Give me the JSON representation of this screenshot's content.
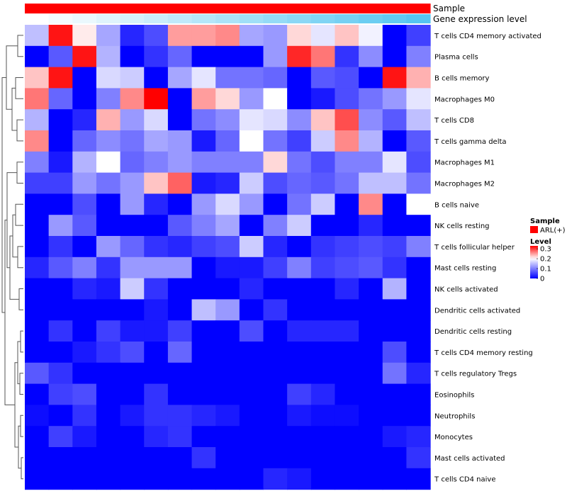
{
  "chart_data": {
    "type": "heatmap",
    "title": "",
    "xlabel": "",
    "ylabel": "",
    "annotation_tracks": [
      {
        "label": "Sample"
      },
      {
        "label": "Gene expression level"
      }
    ],
    "rows": [
      "T cells CD4 memory activated",
      "Plasma cells",
      "B cells memory",
      "Macrophages M0",
      "T cells CD8",
      "T cells gamma delta",
      "Macrophages M1",
      "Macrophages M2",
      "B cells naive",
      "NK cells resting",
      "T cells follicular helper",
      "Mast cells resting",
      "NK cells activated",
      "Dendritic cells activated",
      "Dendritic cells resting",
      "T cells CD4 memory resting",
      "T cells regulatory  Tregs",
      "Eosinophils",
      "Neutrophils",
      "Monocytes",
      "Mast cells activated",
      "T cells CD4 naive"
    ],
    "values": [
      [
        0.15,
        0.32,
        0.21,
        0.13,
        0.03,
        0.06,
        0.25,
        0.25,
        0.26,
        0.13,
        0.12,
        0.22,
        0.18,
        0.23,
        0.19,
        0.0,
        0.05
      ],
      [
        0.0,
        0.07,
        0.32,
        0.14,
        0.0,
        0.04,
        0.08,
        0.0,
        0.0,
        0.0,
        0.12,
        0.31,
        0.27,
        0.04,
        0.11,
        0.0,
        0.1
      ],
      [
        0.23,
        0.32,
        0.0,
        0.17,
        0.16,
        0.0,
        0.13,
        0.18,
        0.09,
        0.09,
        0.08,
        0.0,
        0.07,
        0.06,
        0.0,
        0.32,
        0.24
      ],
      [
        0.27,
        0.08,
        0.0,
        0.1,
        0.26,
        0.33,
        0.0,
        0.25,
        0.22,
        0.12,
        0.2,
        0.0,
        0.02,
        0.06,
        0.09,
        0.12,
        0.18
      ],
      [
        0.14,
        0.0,
        0.03,
        0.24,
        0.12,
        0.17,
        0.0,
        0.09,
        0.11,
        0.18,
        0.17,
        0.11,
        0.23,
        0.29,
        0.11,
        0.07,
        0.15
      ],
      [
        0.26,
        0.0,
        0.08,
        0.11,
        0.09,
        0.13,
        0.12,
        0.02,
        0.08,
        0.2,
        0.09,
        0.05,
        0.16,
        0.26,
        0.14,
        0.0,
        0.07
      ],
      [
        0.1,
        0.02,
        0.14,
        0.2,
        0.08,
        0.1,
        0.12,
        0.1,
        0.1,
        0.1,
        0.22,
        0.09,
        0.06,
        0.1,
        0.1,
        0.18,
        0.06
      ],
      [
        0.05,
        0.05,
        0.12,
        0.09,
        0.12,
        0.23,
        0.28,
        0.02,
        0.03,
        0.16,
        0.06,
        0.08,
        0.07,
        0.09,
        0.15,
        0.15,
        0.09
      ],
      [
        0.0,
        0.0,
        0.06,
        0.0,
        0.12,
        0.03,
        0.0,
        0.12,
        0.17,
        0.12,
        0.0,
        0.09,
        0.16,
        0.0,
        0.26,
        0.0,
        0.2
      ],
      [
        0.0,
        0.12,
        0.07,
        0.0,
        0.0,
        0.0,
        0.07,
        0.1,
        0.13,
        0.0,
        0.1,
        0.16,
        0.0,
        0.0,
        0.03,
        0.0,
        0.0
      ],
      [
        0.0,
        0.04,
        0.0,
        0.12,
        0.08,
        0.04,
        0.03,
        0.05,
        0.06,
        0.16,
        0.03,
        0.0,
        0.04,
        0.05,
        0.06,
        0.05,
        0.1
      ],
      [
        0.03,
        0.07,
        0.1,
        0.04,
        0.12,
        0.12,
        0.12,
        0.0,
        0.02,
        0.02,
        0.05,
        0.1,
        0.05,
        0.06,
        0.07,
        0.04,
        0.0
      ],
      [
        0.0,
        0.0,
        0.03,
        0.02,
        0.16,
        0.04,
        0.0,
        0.0,
        0.0,
        0.03,
        0.0,
        0.0,
        0.0,
        0.03,
        0.0,
        0.14,
        0.0
      ],
      [
        0.0,
        0.0,
        0.0,
        0.0,
        0.0,
        0.02,
        0.0,
        0.15,
        0.12,
        0.0,
        0.04,
        0.0,
        0.0,
        0.0,
        0.0,
        0.0,
        0.0
      ],
      [
        0.0,
        0.04,
        0.0,
        0.05,
        0.02,
        0.02,
        0.05,
        0.0,
        0.0,
        0.06,
        0.0,
        0.03,
        0.03,
        0.03,
        0.0,
        0.0,
        0.0
      ],
      [
        0.0,
        0.0,
        0.02,
        0.04,
        0.06,
        0.0,
        0.08,
        0.0,
        0.0,
        0.0,
        0.0,
        0.0,
        0.0,
        0.0,
        0.0,
        0.06,
        0.0
      ],
      [
        0.07,
        0.04,
        0.0,
        0.0,
        0.0,
        0.0,
        0.0,
        0.0,
        0.0,
        0.0,
        0.0,
        0.0,
        0.0,
        0.0,
        0.0,
        0.09,
        0.03
      ],
      [
        0.0,
        0.05,
        0.06,
        0.0,
        0.0,
        0.04,
        0.0,
        0.0,
        0.0,
        0.0,
        0.0,
        0.05,
        0.03,
        0.0,
        0.0,
        0.0,
        0.0
      ],
      [
        0.01,
        0.0,
        0.04,
        0.0,
        0.02,
        0.04,
        0.04,
        0.03,
        0.02,
        0.0,
        0.0,
        0.02,
        0.01,
        0.01,
        0.0,
        0.0,
        0.0
      ],
      [
        0.0,
        0.05,
        0.02,
        0.0,
        0.0,
        0.03,
        0.04,
        0.0,
        0.0,
        0.0,
        0.0,
        0.0,
        0.0,
        0.0,
        0.0,
        0.02,
        0.03
      ],
      [
        0.0,
        0.0,
        0.0,
        0.0,
        0.0,
        0.0,
        0.0,
        0.04,
        0.0,
        0.0,
        0.0,
        0.0,
        0.0,
        0.0,
        0.0,
        0.0,
        0.04
      ],
      [
        0.0,
        0.0,
        0.0,
        0.0,
        0.0,
        0.0,
        0.0,
        0.0,
        0.0,
        0.0,
        0.03,
        0.02,
        0.0,
        0.0,
        0.0,
        0.0,
        0.0
      ]
    ],
    "sample_annotation": {
      "value": "ARL(+)",
      "color": "#ff0000"
    },
    "gene_expression_level": {
      "values": [
        0.0,
        0.06,
        0.12,
        0.18,
        0.24,
        0.3,
        0.36,
        0.42,
        0.48,
        0.54,
        0.6,
        0.66,
        0.72,
        0.78,
        0.84,
        0.9,
        0.96
      ],
      "low_color": "#ffffff",
      "high_color": "#4fc3f0"
    },
    "color_scale": {
      "min": 0,
      "mid": 0.2,
      "max": 0.33,
      "low": "#0000ff",
      "mid_color": "#ffffff",
      "high": "#ff0000"
    },
    "legend": {
      "sample_title": "Sample",
      "sample_entry": "ARL(+)",
      "level_title": "Level",
      "ticks": [
        "0.3",
        "0.2",
        "0.1",
        "0"
      ],
      "tick_values": [
        0.3,
        0.2,
        0.1,
        0
      ]
    },
    "dendrogram": "rows",
    "grid": false
  }
}
